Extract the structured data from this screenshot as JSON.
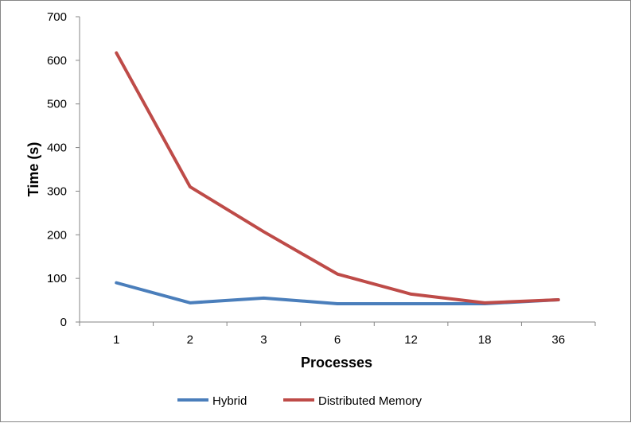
{
  "chart_data": {
    "type": "line",
    "title": "",
    "xlabel": "Processes",
    "ylabel": "Time (s)",
    "categories": [
      "1",
      "2",
      "3",
      "6",
      "12",
      "18",
      "36"
    ],
    "ylim": [
      0,
      700
    ],
    "yticks": [
      0,
      100,
      200,
      300,
      400,
      500,
      600,
      700
    ],
    "grid": false,
    "legend_position": "bottom",
    "series": [
      {
        "name": "Hybrid",
        "color": "#4a7ebb",
        "values": [
          90,
          44,
          55,
          42,
          42,
          42,
          51
        ]
      },
      {
        "name": "Distributed Memory",
        "color": "#be4b48",
        "values": [
          617,
          310,
          207,
          110,
          64,
          44,
          51
        ]
      }
    ]
  }
}
